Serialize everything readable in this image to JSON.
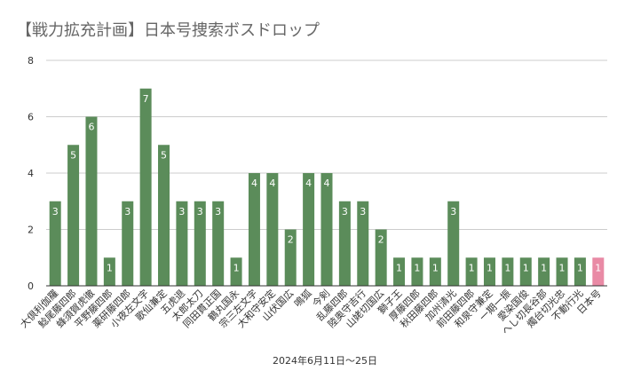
{
  "chart_data": {
    "type": "bar",
    "title": "【戦力拡充計画】日本号捜索ボスドロップ",
    "xlabel": "2024年6月11日～25日",
    "ylabel": "",
    "ylim": [
      0,
      8
    ],
    "yticks": [
      0,
      2,
      4,
      6,
      8
    ],
    "grid": true,
    "colors": {
      "bar": "#5b8c5a",
      "highlight": "#e98aa5",
      "grid": "#cccccc",
      "axis": "#333333",
      "label": "#ffffff"
    },
    "highlight_category": "日本号",
    "categories": [
      "大倶利伽羅",
      "鯰尾藤四郎",
      "蜂須賀虎徹",
      "平野藤四郎",
      "薬研藤四郎",
      "小夜左文字",
      "歌仙兼定",
      "五虎退",
      "太郎太刀",
      "同田貫正国",
      "鶴丸国永",
      "宗三左文字",
      "大和守安定",
      "山伏国広",
      "鳴狐",
      "今剣",
      "乱藤四郎",
      "陸奥守吉行",
      "山姥切国広",
      "獅子王",
      "厚藤四郎",
      "秋田藤四郎",
      "加州清光",
      "前田藤四郎",
      "和泉守兼定",
      "一期一振",
      "愛染国俊",
      "へし切長谷部",
      "燭台切光忠",
      "不動行光",
      "日本号"
    ],
    "values": [
      3,
      5,
      6,
      1,
      3,
      7,
      5,
      3,
      3,
      3,
      1,
      4,
      4,
      2,
      4,
      4,
      3,
      3,
      2,
      1,
      1,
      1,
      3,
      1,
      1,
      1,
      1,
      1,
      1,
      1,
      1
    ]
  }
}
